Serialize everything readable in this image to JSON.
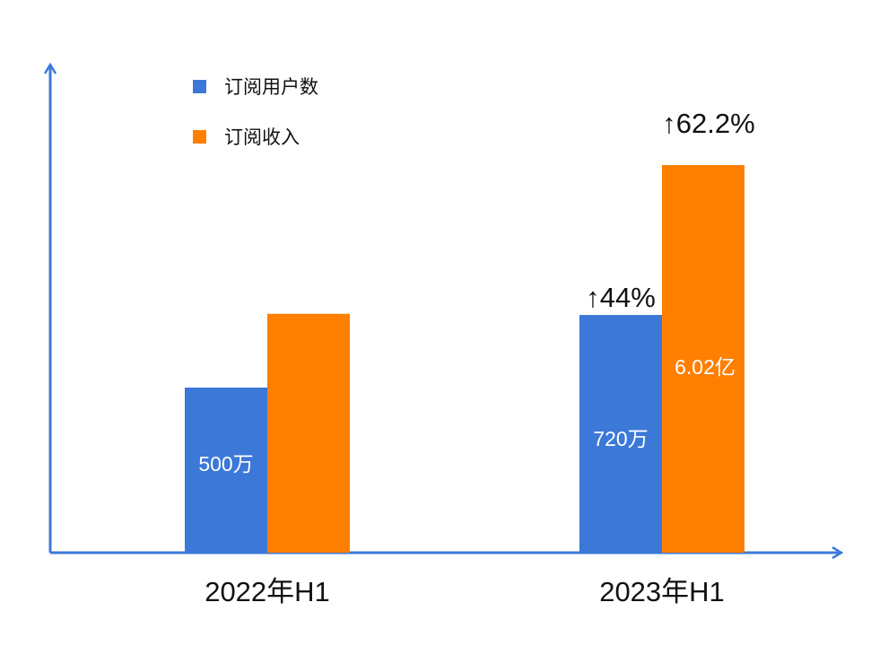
{
  "chart_data": {
    "type": "bar",
    "categories": [
      "2022年H1",
      "2023年H1"
    ],
    "series": [
      {
        "name": "订阅用户数",
        "color": "#3c78d8",
        "values": [
          500,
          720
        ],
        "unit": "万",
        "data_labels": [
          "500万",
          "720万"
        ],
        "growth_labels": [
          "",
          "↑44%"
        ]
      },
      {
        "name": "订阅收入",
        "color": "#ff7f00",
        "values": [
          3.71,
          6.02
        ],
        "unit": "亿",
        "data_labels": [
          "",
          "6.02亿"
        ],
        "growth_labels": [
          "",
          "↑62.2%"
        ]
      }
    ],
    "axis_color": "#3c78d8",
    "legend_position": "top-left",
    "grid": false,
    "xlabel": "",
    "ylabel": ""
  }
}
